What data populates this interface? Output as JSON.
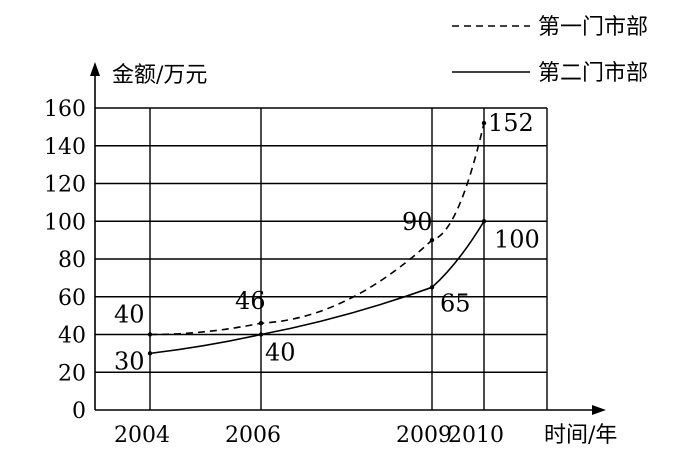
{
  "chart_data": {
    "type": "line",
    "title": "",
    "ylabel": "金额/万元",
    "xlabel": "时间/年",
    "x": [
      2004,
      2006,
      2009,
      2010
    ],
    "x_ticks": [
      "2004",
      "2006",
      "2009",
      "2010"
    ],
    "ylim": [
      0,
      160
    ],
    "y_ticks": [
      "0",
      "20",
      "40",
      "60",
      "80",
      "100",
      "120",
      "140",
      "160"
    ],
    "grid": true,
    "legend_position": "top-right",
    "series": [
      {
        "name": "第一门市部",
        "style": "dashed",
        "values": [
          40,
          46,
          90,
          152
        ],
        "labels": [
          "40",
          "46",
          "90",
          "152"
        ]
      },
      {
        "name": "第二门市部",
        "style": "solid",
        "values": [
          30,
          40,
          65,
          100
        ],
        "labels": [
          "30",
          "40",
          "65",
          "100"
        ]
      }
    ]
  }
}
